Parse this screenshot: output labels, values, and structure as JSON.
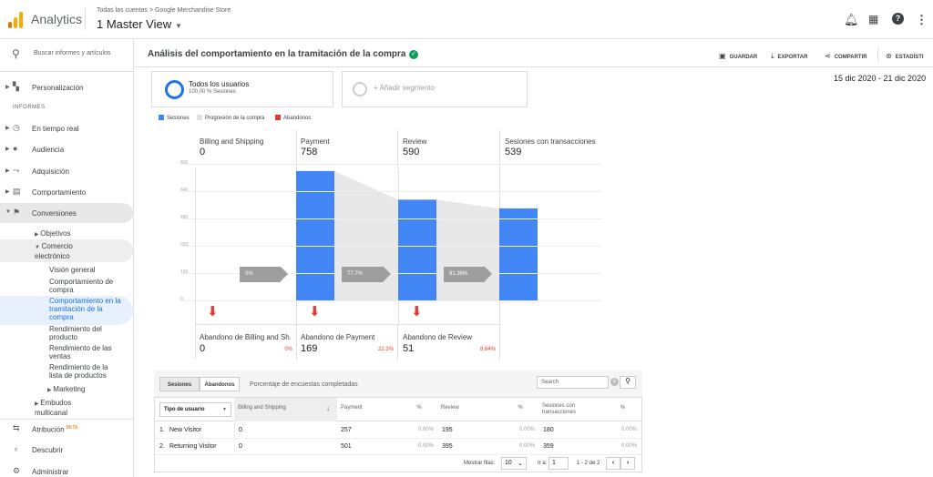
{
  "header": {
    "app_name": "Analytics",
    "breadcrumb": "Todas las cuentas > Google Merchandise Store",
    "view_name": "1 Master View",
    "icons": [
      "bell-icon",
      "apps-grid-icon",
      "help-icon",
      "more-vert-icon"
    ],
    "brand_colors": {
      "logo_orange": "#f9ab00",
      "logo_dark_orange": "#e37400"
    }
  },
  "sidebar": {
    "search_placeholder": "Buscar informes y artículos",
    "personalization": "Personalización",
    "section_label": "INFORMES",
    "items": [
      {
        "label": "En tiempo real",
        "icon": "clock-icon"
      },
      {
        "label": "Audiencia",
        "icon": "person-icon"
      },
      {
        "label": "Adquisición",
        "icon": "acquisition-icon"
      },
      {
        "label": "Comportamiento",
        "icon": "behavior-icon"
      },
      {
        "label": "Conversiones",
        "icon": "flag-icon"
      }
    ],
    "objetivos": "Objetivos",
    "comercio": "Comercio electrónico",
    "ecommerce_items": [
      "Visión general",
      "Comportamiento de compra",
      "Comportamiento en la tramitación de la compra",
      "Rendimiento del producto",
      "Rendimiento de las ventas",
      "Rendimiento de la lista de productos"
    ],
    "marketing": "Marketing",
    "embudos": "Embudos multicanal",
    "atribucion": "Atribución",
    "beta": "BETA",
    "descubrir": "Descubrir",
    "administrar": "Administrar"
  },
  "report": {
    "title": "Análisis del comportamiento en la tramitación de la compra",
    "actions": {
      "save": "GUARDAR",
      "export": "EXPORTAR",
      "share": "COMPARTIR",
      "stats": "ESTADÍSTI"
    },
    "date_range": "15 dic 2020 - 21 dic 2020",
    "segment": {
      "name": "Todos los usuarios",
      "detail": "100,00 % Sesiones",
      "add_label": "+ Añadir segmento"
    },
    "legend": [
      {
        "label": "Sesiones",
        "color": "#4285f4"
      },
      {
        "label": "Progresión de la compra",
        "color": "#e0e0e0"
      },
      {
        "label": "Abandonos",
        "color": "#e53935"
      }
    ]
  },
  "chart_data": {
    "type": "bar",
    "categories": [
      "Billing and Shipping",
      "Payment",
      "Review",
      "Sesiones con transacciones"
    ],
    "values": [
      0,
      758,
      590,
      539
    ],
    "ylim": [
      0,
      800
    ],
    "yticks": [
      "800",
      "640",
      "480",
      "320",
      "160",
      "0"
    ],
    "progression": [
      "0%",
      "77.7%",
      "91.36%"
    ],
    "abandonment": [
      {
        "label": "Abandono de Billing and Sh...",
        "value": "0",
        "pct": "0%"
      },
      {
        "label": "Abandono de Payment",
        "value": "169",
        "pct": "22.3%"
      },
      {
        "label": "Abandono de Review",
        "value": "51",
        "pct": "8.64%"
      }
    ]
  },
  "table": {
    "tabs": [
      "Sesiones",
      "Abandonos"
    ],
    "completion_label": "Porcentaje de encuestas completadas",
    "search_placeholder": "Search",
    "dimension_select": "Tipo de usuario",
    "columns": [
      "Billing and Shipping",
      "Payment",
      "%",
      "Review",
      "%",
      "Sesiones con transacciones",
      "%"
    ],
    "rows": [
      {
        "index": "1.",
        "name": "New Visitor",
        "billing": "0",
        "payment": "257",
        "payment_pct": "0.00%",
        "review": "195",
        "review_pct": "0.00%",
        "transactions": "180",
        "transactions_pct": "0.00%"
      },
      {
        "index": "2.",
        "name": "Returning Visitor",
        "billing": "0",
        "payment": "501",
        "payment_pct": "0.00%",
        "review": "395",
        "review_pct": "0.00%",
        "transactions": "359",
        "transactions_pct": "0.00%"
      }
    ],
    "pagination": {
      "rows_label": "Mostrar filas:",
      "rows_value": "10",
      "goto_label": "Ir a:",
      "goto_value": "1",
      "range": "1 - 2 de 2"
    }
  }
}
